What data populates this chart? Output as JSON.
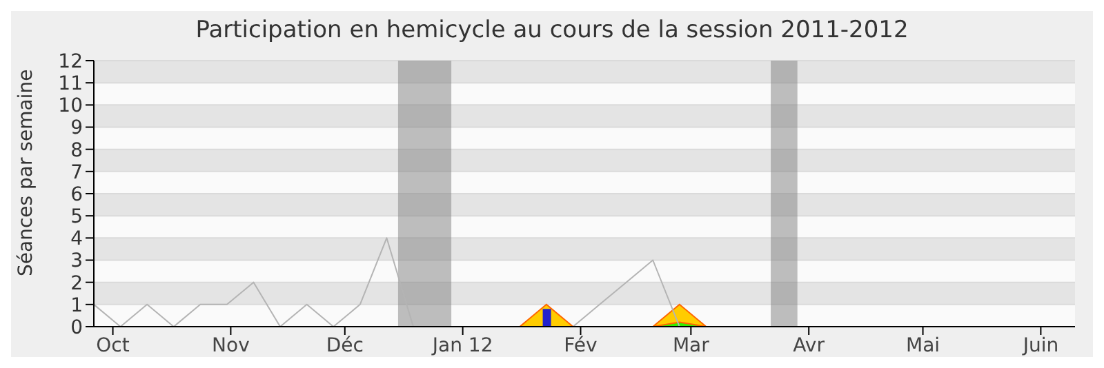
{
  "chart_data": {
    "type": "line",
    "title": "Participation en hemicycle au cours de la session 2011-2012",
    "ylabel": "Séances par semaine",
    "x": [
      "2011-09-26",
      "2011-10-03",
      "2011-10-10",
      "2011-10-17",
      "2011-10-24",
      "2011-10-31",
      "2011-11-07",
      "2011-11-14",
      "2011-11-21",
      "2011-11-28",
      "2011-12-05",
      "2011-12-12",
      "2011-12-19",
      "2011-12-26",
      "2012-01-02",
      "2012-01-09",
      "2012-01-16",
      "2012-01-23",
      "2012-01-30",
      "2012-02-06",
      "2012-02-13",
      "2012-02-20",
      "2012-02-27",
      "2012-03-05"
    ],
    "series": [
      {
        "type": "area",
        "color": "#ffcc00",
        "values": [
          null,
          null,
          null,
          null,
          null,
          null,
          null,
          null,
          null,
          null,
          null,
          null,
          null,
          null,
          null,
          null,
          0,
          1,
          0,
          null,
          null,
          0,
          1,
          0
        ]
      },
      {
        "type": "area",
        "color": "#33ee00",
        "values": [
          null,
          null,
          null,
          null,
          null,
          null,
          null,
          null,
          null,
          null,
          null,
          null,
          null,
          null,
          null,
          null,
          null,
          null,
          null,
          null,
          null,
          0,
          0.2,
          0
        ]
      },
      {
        "type": "bar",
        "color": "#2222cc",
        "values": [
          null,
          null,
          null,
          null,
          null,
          null,
          null,
          null,
          null,
          null,
          null,
          null,
          null,
          null,
          null,
          null,
          null,
          0.8,
          null,
          null,
          null,
          null,
          null,
          null
        ]
      },
      {
        "color": "#b4b4b4",
        "values": [
          1,
          0,
          1,
          0,
          1,
          1,
          2,
          0,
          1,
          0,
          1,
          4,
          0,
          null,
          null,
          null,
          null,
          null,
          0,
          1,
          2,
          3,
          0,
          null
        ]
      }
    ],
    "xlim": [
      "2011-09-26",
      "2012-06-10"
    ],
    "xticks": [
      {
        "value": "2011-10-01",
        "label": "Oct"
      },
      {
        "value": "2011-11-01",
        "label": "Nov"
      },
      {
        "value": "2011-12-01",
        "label": "Déc"
      },
      {
        "value": "2012-01-01",
        "label": "Jan 12"
      },
      {
        "value": "2012-02-01",
        "label": "Fév"
      },
      {
        "value": "2012-03-01",
        "label": "Mar"
      },
      {
        "value": "2012-04-01",
        "label": "Avr"
      },
      {
        "value": "2012-05-01",
        "label": "Mai"
      },
      {
        "value": "2012-06-01",
        "label": "Juin"
      }
    ],
    "ylim": [
      0,
      12
    ],
    "yticks": [
      0,
      1,
      2,
      3,
      4,
      5,
      6,
      7,
      8,
      9,
      10,
      11,
      12
    ],
    "bands": [
      {
        "axis": "x",
        "from": "2011-12-15",
        "to": "2011-12-29",
        "color": "#808080"
      },
      {
        "axis": "x",
        "from": "2012-03-22",
        "to": "2012-03-29",
        "color": "#808080"
      }
    ],
    "grid": "y",
    "legend": false,
    "marker": "none",
    "line_style": "solid"
  }
}
